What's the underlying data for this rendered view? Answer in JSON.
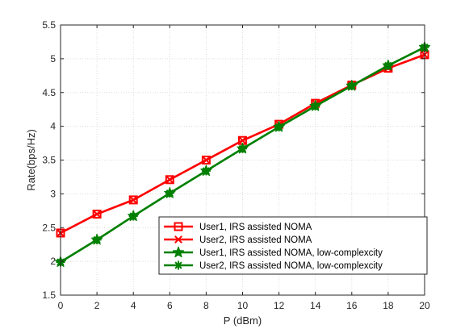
{
  "chart_data": {
    "type": "line",
    "title": "",
    "xlabel": "P (dBm)",
    "ylabel": "Rate(bps/Hz)",
    "xlim": [
      0,
      20
    ],
    "ylim": [
      1.5,
      5.5
    ],
    "x": [
      0,
      2,
      4,
      6,
      8,
      10,
      12,
      14,
      16,
      18,
      20
    ],
    "xticks": [
      "0",
      "2",
      "4",
      "6",
      "8",
      "10",
      "12",
      "14",
      "16",
      "18",
      "20"
    ],
    "yticks": [
      "1.5",
      "2",
      "2.5",
      "3",
      "3.5",
      "4",
      "4.5",
      "5",
      "5.5"
    ],
    "grid": true,
    "legend_position": "bottom-right",
    "series": [
      {
        "name": "User1, IRS assisted NOMA",
        "color": "#ff0000",
        "marker": "square",
        "values": [
          2.42,
          2.7,
          2.91,
          3.21,
          3.5,
          3.79,
          4.03,
          4.34,
          4.61,
          4.86,
          5.06
        ]
      },
      {
        "name": "User2, IRS assisted NOMA",
        "color": "#ff0000",
        "marker": "x",
        "values": [
          2.42,
          2.7,
          2.91,
          3.21,
          3.5,
          3.79,
          4.03,
          4.34,
          4.61,
          4.86,
          5.06
        ]
      },
      {
        "name": "User1, IRS assisted NOMA, low-complexcity",
        "color": "#008000",
        "marker": "pentagram",
        "values": [
          1.99,
          2.32,
          2.67,
          3.01,
          3.34,
          3.67,
          3.99,
          4.3,
          4.6,
          4.9,
          5.17
        ]
      },
      {
        "name": "User2, IRS assisted NOMA, low-complexcity",
        "color": "#008000",
        "marker": "asterisk",
        "values": [
          1.99,
          2.32,
          2.67,
          3.01,
          3.34,
          3.67,
          3.99,
          4.3,
          4.6,
          4.9,
          5.17
        ]
      }
    ]
  }
}
